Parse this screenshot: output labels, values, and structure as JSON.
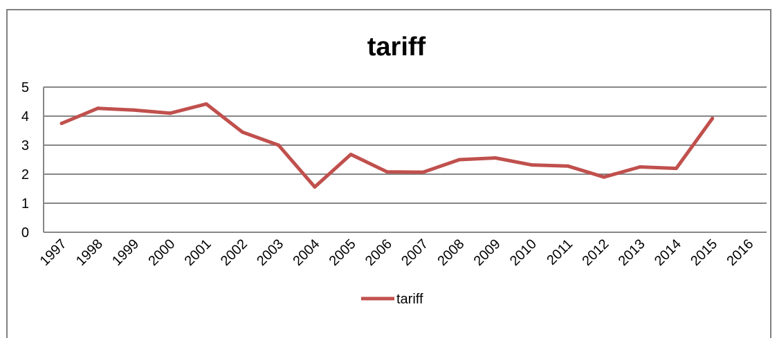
{
  "chart_data": {
    "type": "line",
    "title": "tariff",
    "xlabel": "",
    "ylabel": "",
    "x": [
      "1997",
      "1998",
      "1999",
      "2000",
      "2001",
      "2002",
      "2003",
      "2004",
      "2005",
      "2006",
      "2007",
      "2008",
      "2009",
      "2010",
      "2011",
      "2012",
      "2013",
      "2014",
      "2015",
      "2016"
    ],
    "y_ticks": [
      "0",
      "1",
      "2",
      "3",
      "4",
      "5"
    ],
    "ylim": [
      0,
      5
    ],
    "grid": true,
    "legend_position": "bottom",
    "series": [
      {
        "name": "tariff",
        "color": "#C0504D",
        "values": [
          3.75,
          4.27,
          4.21,
          4.1,
          4.42,
          3.45,
          3.0,
          1.56,
          2.68,
          2.08,
          2.07,
          2.5,
          2.56,
          2.32,
          2.28,
          1.9,
          2.25,
          2.2,
          3.92,
          null
        ]
      }
    ]
  }
}
